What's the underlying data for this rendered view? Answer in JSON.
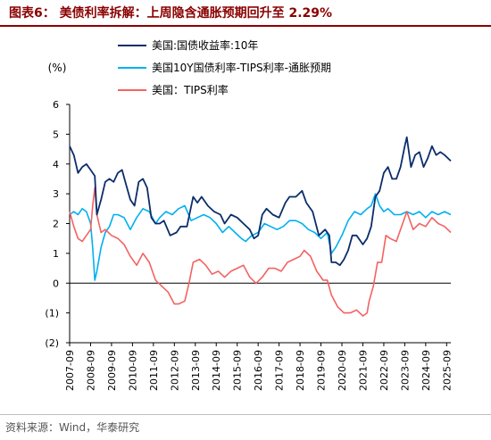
{
  "title": "图表6：  美债利率拆解：上周隐含通胀预期回升至 2.29%",
  "source": "资料来源：Wind，华泰研究",
  "chart_data": {
    "type": "line",
    "y_unit": "(%)",
    "ylim": [
      -2,
      6
    ],
    "y_ticks": [
      6,
      5,
      4,
      3,
      2,
      1,
      0,
      -1,
      -2
    ],
    "y_tick_labels": [
      "6",
      "5",
      "4",
      "3",
      "2",
      "1",
      "0",
      "(1)",
      "(2)"
    ],
    "x_tick_labels": [
      "2007-09",
      "2008-09",
      "2009-09",
      "2010-09",
      "2011-09",
      "2012-09",
      "2013-09",
      "2014-09",
      "2015-09",
      "2016-09",
      "2017-09",
      "2018-09",
      "2019-09",
      "2020-09",
      "2021-09",
      "2022-09",
      "2023-09",
      "2024-09",
      "2025-09"
    ],
    "xlim": [
      2007.7,
      2025.9
    ],
    "grid": false,
    "legend_position": "top",
    "series": [
      {
        "name": "美国:国债收益率:10年",
        "color": "#0b2d6b",
        "x": [
          2007.7,
          2007.9,
          2008.1,
          2008.3,
          2008.5,
          2008.7,
          2008.9,
          2009.0,
          2009.2,
          2009.4,
          2009.6,
          2009.8,
          2010.0,
          2010.2,
          2010.4,
          2010.6,
          2010.8,
          2011.0,
          2011.2,
          2011.4,
          2011.6,
          2011.8,
          2012.0,
          2012.2,
          2012.5,
          2012.8,
          2013.0,
          2013.3,
          2013.6,
          2013.8,
          2014.0,
          2014.3,
          2014.6,
          2014.9,
          2015.1,
          2015.4,
          2015.7,
          2016.0,
          2016.3,
          2016.5,
          2016.7,
          2016.9,
          2017.1,
          2017.4,
          2017.7,
          2018.0,
          2018.2,
          2018.5,
          2018.8,
          2019.0,
          2019.3,
          2019.6,
          2019.9,
          2020.1,
          2020.2,
          2020.4,
          2020.6,
          2020.8,
          2021.0,
          2021.2,
          2021.4,
          2021.7,
          2021.9,
          2022.1,
          2022.3,
          2022.5,
          2022.7,
          2022.9,
          2023.1,
          2023.3,
          2023.5,
          2023.7,
          2023.8,
          2024.0,
          2024.2,
          2024.4,
          2024.6,
          2024.8,
          2025.0,
          2025.2,
          2025.4,
          2025.6,
          2025.9
        ],
        "y": [
          4.6,
          4.3,
          3.7,
          3.9,
          4.0,
          3.8,
          3.6,
          2.3,
          2.8,
          3.4,
          3.5,
          3.4,
          3.7,
          3.8,
          3.3,
          2.8,
          2.6,
          3.4,
          3.5,
          3.2,
          2.2,
          2.0,
          2.0,
          2.1,
          1.6,
          1.7,
          1.9,
          1.9,
          2.9,
          2.7,
          2.9,
          2.6,
          2.4,
          2.3,
          2.0,
          2.3,
          2.2,
          2.0,
          1.8,
          1.5,
          1.6,
          2.3,
          2.5,
          2.3,
          2.2,
          2.7,
          2.9,
          2.9,
          3.1,
          2.7,
          2.4,
          1.6,
          1.8,
          1.6,
          0.7,
          0.7,
          0.6,
          0.8,
          1.1,
          1.6,
          1.6,
          1.3,
          1.5,
          1.9,
          2.9,
          3.1,
          3.7,
          3.9,
          3.5,
          3.5,
          3.9,
          4.6,
          4.9,
          3.9,
          4.3,
          4.4,
          3.9,
          4.2,
          4.6,
          4.3,
          4.4,
          4.3,
          4.1
        ]
      },
      {
        "name": "美国10Y国债利率-TIPS利率-通胀预期",
        "color": "#00b0f0",
        "x": [
          2007.7,
          2007.9,
          2008.1,
          2008.3,
          2008.5,
          2008.7,
          2008.8,
          2008.9,
          2009.0,
          2009.2,
          2009.4,
          2009.6,
          2009.8,
          2010.0,
          2010.3,
          2010.6,
          2010.9,
          2011.2,
          2011.5,
          2011.8,
          2012.0,
          2012.3,
          2012.6,
          2012.9,
          2013.2,
          2013.5,
          2013.8,
          2014.1,
          2014.4,
          2014.7,
          2015.0,
          2015.3,
          2015.6,
          2015.9,
          2016.1,
          2016.4,
          2016.7,
          2017.0,
          2017.3,
          2017.6,
          2017.9,
          2018.2,
          2018.5,
          2018.8,
          2019.1,
          2019.4,
          2019.7,
          2020.0,
          2020.2,
          2020.4,
          2020.7,
          2021.0,
          2021.3,
          2021.6,
          2021.9,
          2022.1,
          2022.3,
          2022.5,
          2022.7,
          2022.9,
          2023.2,
          2023.5,
          2023.8,
          2024.1,
          2024.4,
          2024.7,
          2025.0,
          2025.3,
          2025.6,
          2025.9
        ],
        "y": [
          2.3,
          2.4,
          2.3,
          2.5,
          2.4,
          2.0,
          1.2,
          0.1,
          0.4,
          1.2,
          1.7,
          1.9,
          2.3,
          2.3,
          2.2,
          1.8,
          2.2,
          2.5,
          2.4,
          2.0,
          2.2,
          2.4,
          2.3,
          2.5,
          2.6,
          2.1,
          2.2,
          2.3,
          2.2,
          2.0,
          1.7,
          1.9,
          1.7,
          1.5,
          1.4,
          1.6,
          1.7,
          2.0,
          1.9,
          1.8,
          1.9,
          2.1,
          2.1,
          2.0,
          1.8,
          1.7,
          1.5,
          1.7,
          1.0,
          1.2,
          1.6,
          2.1,
          2.4,
          2.3,
          2.5,
          2.6,
          3.0,
          2.6,
          2.4,
          2.5,
          2.3,
          2.3,
          2.4,
          2.3,
          2.4,
          2.2,
          2.4,
          2.3,
          2.4,
          2.3
        ]
      },
      {
        "name": "美国：TIPS利率",
        "color": "#f46262",
        "x": [
          2007.7,
          2007.9,
          2008.1,
          2008.3,
          2008.5,
          2008.7,
          2008.8,
          2008.9,
          2009.0,
          2009.2,
          2009.4,
          2009.7,
          2010.0,
          2010.3,
          2010.6,
          2010.9,
          2011.2,
          2011.5,
          2011.8,
          2012.1,
          2012.4,
          2012.7,
          2012.9,
          2013.2,
          2013.4,
          2013.6,
          2013.9,
          2014.2,
          2014.5,
          2014.8,
          2015.1,
          2015.4,
          2015.7,
          2016.0,
          2016.3,
          2016.6,
          2016.9,
          2017.2,
          2017.5,
          2017.8,
          2018.1,
          2018.4,
          2018.7,
          2018.9,
          2019.2,
          2019.5,
          2019.8,
          2020.0,
          2020.2,
          2020.5,
          2020.8,
          2021.1,
          2021.4,
          2021.7,
          2021.9,
          2022.0,
          2022.2,
          2022.4,
          2022.6,
          2022.8,
          2023.0,
          2023.3,
          2023.6,
          2023.8,
          2024.1,
          2024.4,
          2024.7,
          2025.0,
          2025.3,
          2025.6,
          2025.9
        ],
        "y": [
          2.4,
          1.9,
          1.5,
          1.4,
          1.6,
          1.8,
          2.6,
          3.2,
          2.3,
          1.7,
          1.8,
          1.6,
          1.5,
          1.3,
          0.9,
          0.6,
          1.0,
          0.7,
          0.1,
          -0.1,
          -0.3,
          -0.7,
          -0.7,
          -0.6,
          0.0,
          0.7,
          0.8,
          0.6,
          0.3,
          0.4,
          0.2,
          0.4,
          0.5,
          0.6,
          0.2,
          0.0,
          0.2,
          0.5,
          0.5,
          0.4,
          0.7,
          0.8,
          0.9,
          1.1,
          0.9,
          0.4,
          0.1,
          0.1,
          -0.4,
          -0.8,
          -1.0,
          -1.0,
          -0.9,
          -1.1,
          -1.0,
          -0.6,
          -0.1,
          0.7,
          0.7,
          1.6,
          1.5,
          1.4,
          2.0,
          2.4,
          1.8,
          2.0,
          1.9,
          2.2,
          2.0,
          1.9,
          1.7
        ]
      }
    ]
  }
}
